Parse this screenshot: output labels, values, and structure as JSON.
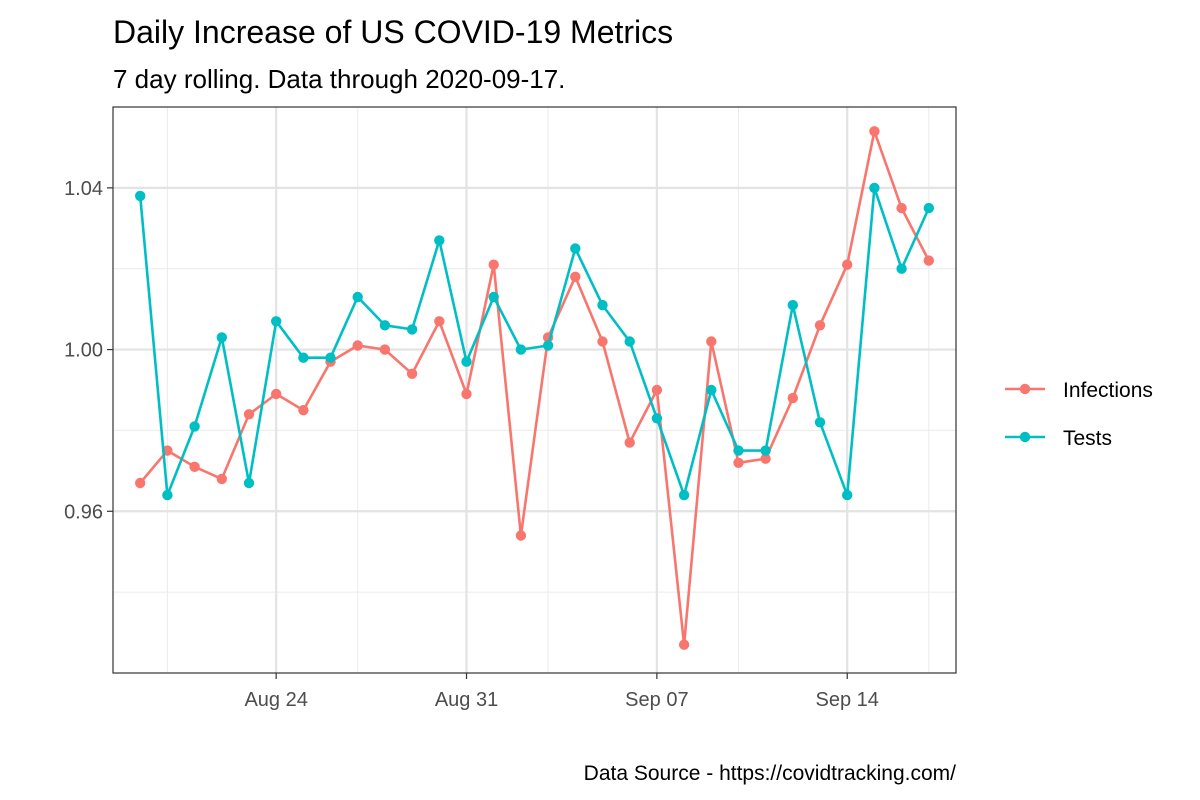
{
  "header": {
    "title": "Daily Increase of US COVID-19 Metrics",
    "subtitle": "7 day rolling. Data through 2020-09-17.",
    "caption": "Data Source - https://covidtracking.com/"
  },
  "chart_data": {
    "type": "line",
    "x": [
      "2020-08-19",
      "2020-08-20",
      "2020-08-21",
      "2020-08-22",
      "2020-08-23",
      "2020-08-24",
      "2020-08-25",
      "2020-08-26",
      "2020-08-27",
      "2020-08-28",
      "2020-08-29",
      "2020-08-30",
      "2020-08-31",
      "2020-09-01",
      "2020-09-02",
      "2020-09-03",
      "2020-09-04",
      "2020-09-05",
      "2020-09-06",
      "2020-09-07",
      "2020-09-08",
      "2020-09-09",
      "2020-09-10",
      "2020-09-11",
      "2020-09-12",
      "2020-09-13",
      "2020-09-14",
      "2020-09-15",
      "2020-09-16",
      "2020-09-17"
    ],
    "series": [
      {
        "name": "Infections",
        "color": "#F8766D",
        "values": [
          0.967,
          0.975,
          0.971,
          0.968,
          0.984,
          0.989,
          0.985,
          0.997,
          1.001,
          1.0,
          0.994,
          1.007,
          0.989,
          1.021,
          0.954,
          1.003,
          1.018,
          1.002,
          0.977,
          0.99,
          0.927,
          1.002,
          0.972,
          0.973,
          0.988,
          1.006,
          1.021,
          1.054,
          1.035,
          1.022
        ]
      },
      {
        "name": "Tests",
        "color": "#00BFC4",
        "values": [
          1.038,
          0.964,
          0.981,
          1.003,
          0.967,
          1.007,
          0.998,
          0.998,
          1.013,
          1.006,
          1.005,
          1.027,
          0.997,
          1.013,
          1.0,
          1.001,
          1.025,
          1.011,
          1.002,
          0.983,
          0.964,
          0.99,
          0.975,
          0.975,
          1.011,
          0.982,
          0.964,
          1.04,
          1.02,
          1.035
        ]
      }
    ],
    "x_ticks": [
      {
        "date": "2020-08-24",
        "label": "Aug 24"
      },
      {
        "date": "2020-08-31",
        "label": "Aug 31"
      },
      {
        "date": "2020-09-07",
        "label": "Sep 07"
      },
      {
        "date": "2020-09-14",
        "label": "Sep 14"
      }
    ],
    "y_ticks": [
      {
        "value": 0.96,
        "label": "0.96"
      },
      {
        "value": 1.0,
        "label": "1.00"
      },
      {
        "value": 1.04,
        "label": "1.04"
      }
    ],
    "xlim": [
      "2020-08-18",
      "2020-09-18"
    ],
    "ylim": [
      0.92,
      1.06
    ],
    "grid": true,
    "legend_position": "right"
  }
}
